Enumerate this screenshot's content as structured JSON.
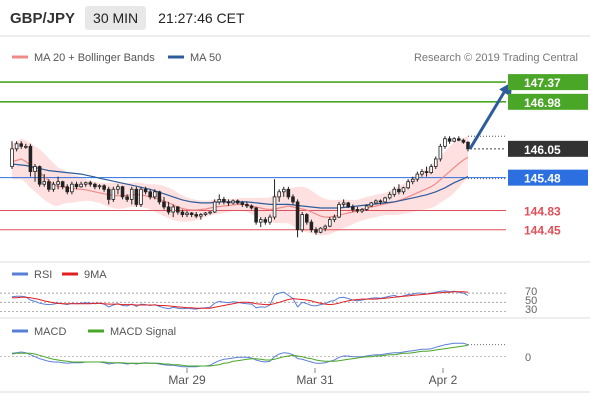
{
  "header": {
    "symbol": "GBP/JPY",
    "timeframe": "30 MIN",
    "time": "21:27:46 CET"
  },
  "legend": {
    "ma20_bb": "MA 20 + Bollinger Bands",
    "ma50": "MA 50",
    "copyright": "Research © 2019 Trading Central",
    "rsi": "RSI",
    "ma9": "9MA",
    "macd": "MACD",
    "macd_signal": "MACD Signal"
  },
  "colors": {
    "ma20": "#f08a8a",
    "ma50": "#2c5c9a",
    "band": "#ffd6d6",
    "green_level": "#4aa626",
    "blue_level": "#2b6fe0",
    "red_level": "#e0505a",
    "candle": "#222222",
    "rsi": "#5a7fd6",
    "ma9": "#e02020",
    "macd": "#5a7fd6",
    "macd_signal": "#4aa626",
    "forecast_arrow": "#2c5c9a"
  },
  "levels": [
    {
      "value": 147.37,
      "label": "147.37",
      "kind": "resistance"
    },
    {
      "value": 146.98,
      "label": "146.98",
      "kind": "resistance"
    },
    {
      "value": 146.05,
      "label": "146.05",
      "kind": "last"
    },
    {
      "value": 145.48,
      "label": "145.48",
      "kind": "pivot"
    },
    {
      "value": 144.83,
      "label": "144.83",
      "kind": "support"
    },
    {
      "value": 144.45,
      "label": "144.45",
      "kind": "support"
    }
  ],
  "xaxis": {
    "labels": [
      "Mar 29",
      "Mar 31",
      "Apr 2"
    ]
  },
  "rsi_axis": {
    "labels": [
      "70",
      "50",
      "30"
    ]
  },
  "macd_axis": {
    "labels": [
      "0"
    ]
  },
  "chart_data": {
    "type": "candlestick",
    "ylim": [
      143.95,
      147.55
    ],
    "candles": [
      [
        145.7,
        146.2,
        145.65,
        146.05
      ],
      [
        146.05,
        146.2,
        146.0,
        146.15
      ],
      [
        146.15,
        146.2,
        146.05,
        146.1
      ],
      [
        146.1,
        146.15,
        146.05,
        146.1
      ],
      [
        146.1,
        146.15,
        145.5,
        145.6
      ],
      [
        145.6,
        145.75,
        145.4,
        145.7
      ],
      [
        145.7,
        145.72,
        145.3,
        145.35
      ],
      [
        145.35,
        145.55,
        145.3,
        145.4
      ],
      [
        145.4,
        145.45,
        145.2,
        145.25
      ],
      [
        145.25,
        145.4,
        145.2,
        145.35
      ],
      [
        145.35,
        145.5,
        145.25,
        145.4
      ],
      [
        145.4,
        145.42,
        145.25,
        145.3
      ],
      [
        145.3,
        145.35,
        145.15,
        145.2
      ],
      [
        145.2,
        145.4,
        145.15,
        145.35
      ],
      [
        145.35,
        145.4,
        145.25,
        145.3
      ],
      [
        145.3,
        145.4,
        145.28,
        145.35
      ],
      [
        145.35,
        145.4,
        145.3,
        145.38
      ],
      [
        145.38,
        145.42,
        145.3,
        145.35
      ],
      [
        145.35,
        145.38,
        145.25,
        145.3
      ],
      [
        145.3,
        145.35,
        145.25,
        145.32
      ],
      [
        145.32,
        145.35,
        145.2,
        145.25
      ],
      [
        145.25,
        145.3,
        144.95,
        145.05
      ],
      [
        145.05,
        145.3,
        145.0,
        145.25
      ],
      [
        145.25,
        145.35,
        145.15,
        145.3
      ],
      [
        145.3,
        145.32,
        145.05,
        145.1
      ],
      [
        145.1,
        145.15,
        145.0,
        145.05
      ],
      [
        145.05,
        145.3,
        144.95,
        145.25
      ],
      [
        145.25,
        145.3,
        144.9,
        144.95
      ],
      [
        144.95,
        145.3,
        144.9,
        145.25
      ],
      [
        145.25,
        145.3,
        145.15,
        145.2
      ],
      [
        145.2,
        145.25,
        145.05,
        145.1
      ],
      [
        145.1,
        145.25,
        145.05,
        145.2
      ],
      [
        145.2,
        145.22,
        144.95,
        145.0
      ],
      [
        145.0,
        145.1,
        144.85,
        144.9
      ],
      [
        144.9,
        145.0,
        144.75,
        144.8
      ],
      [
        144.8,
        144.95,
        144.7,
        144.9
      ],
      [
        144.9,
        144.92,
        144.75,
        144.8
      ],
      [
        144.8,
        144.85,
        144.7,
        144.75
      ],
      [
        144.75,
        144.82,
        144.7,
        144.78
      ],
      [
        144.78,
        144.8,
        144.7,
        144.75
      ],
      [
        144.75,
        144.8,
        144.68,
        144.72
      ],
      [
        144.72,
        144.78,
        144.65,
        144.75
      ],
      [
        144.75,
        144.8,
        144.72,
        144.78
      ],
      [
        144.78,
        144.82,
        144.75,
        144.8
      ],
      [
        144.8,
        145.05,
        144.78,
        145.0
      ],
      [
        145.0,
        145.15,
        144.95,
        145.05
      ],
      [
        145.05,
        145.1,
        144.95,
        145.0
      ],
      [
        145.0,
        145.05,
        144.92,
        144.98
      ],
      [
        144.98,
        145.05,
        144.95,
        145.02
      ],
      [
        145.02,
        145.05,
        144.95,
        144.98
      ],
      [
        144.98,
        145.02,
        144.9,
        144.95
      ],
      [
        144.95,
        145.0,
        144.88,
        144.92
      ],
      [
        144.92,
        144.95,
        144.85,
        144.88
      ],
      [
        144.88,
        144.9,
        144.55,
        144.6
      ],
      [
        144.6,
        144.7,
        144.5,
        144.65
      ],
      [
        144.65,
        144.7,
        144.55,
        144.6
      ],
      [
        144.6,
        144.75,
        144.55,
        144.7
      ],
      [
        144.7,
        145.45,
        144.65,
        145.1
      ],
      [
        145.1,
        145.25,
        145.0,
        145.2
      ],
      [
        145.2,
        145.3,
        145.1,
        145.25
      ],
      [
        145.25,
        145.3,
        145.05,
        145.1
      ],
      [
        145.1,
        145.15,
        144.95,
        145.0
      ],
      [
        145.0,
        145.05,
        144.3,
        144.45
      ],
      [
        144.45,
        144.8,
        144.4,
        144.75
      ],
      [
        144.75,
        144.78,
        144.55,
        144.6
      ],
      [
        144.6,
        144.65,
        144.4,
        144.45
      ],
      [
        144.45,
        144.5,
        144.35,
        144.4
      ],
      [
        144.4,
        144.5,
        144.38,
        144.48
      ],
      [
        144.48,
        144.55,
        144.42,
        144.52
      ],
      [
        144.52,
        144.7,
        144.5,
        144.65
      ],
      [
        144.65,
        144.75,
        144.6,
        144.7
      ],
      [
        144.7,
        145.0,
        144.68,
        144.95
      ],
      [
        144.95,
        145.05,
        144.9,
        144.98
      ],
      [
        144.98,
        145.0,
        144.88,
        144.9
      ],
      [
        144.9,
        144.95,
        144.8,
        144.85
      ],
      [
        144.85,
        144.9,
        144.78,
        144.82
      ],
      [
        144.82,
        144.88,
        144.78,
        144.85
      ],
      [
        144.85,
        144.95,
        144.82,
        144.92
      ],
      [
        144.92,
        145.0,
        144.9,
        144.98
      ],
      [
        144.98,
        145.05,
        144.95,
        145.02
      ],
      [
        145.02,
        145.05,
        144.95,
        145.0
      ],
      [
        145.0,
        145.1,
        144.98,
        145.08
      ],
      [
        145.08,
        145.2,
        145.05,
        145.15
      ],
      [
        145.15,
        145.3,
        145.1,
        145.25
      ],
      [
        145.25,
        145.35,
        145.15,
        145.2
      ],
      [
        145.2,
        145.3,
        145.15,
        145.28
      ],
      [
        145.28,
        145.45,
        145.25,
        145.4
      ],
      [
        145.4,
        145.5,
        145.35,
        145.45
      ],
      [
        145.45,
        145.6,
        145.4,
        145.55
      ],
      [
        145.55,
        145.65,
        145.5,
        145.6
      ],
      [
        145.6,
        145.7,
        145.5,
        145.58
      ],
      [
        145.58,
        145.75,
        145.55,
        145.7
      ],
      [
        145.7,
        145.9,
        145.65,
        145.85
      ],
      [
        145.85,
        146.15,
        145.8,
        146.1
      ],
      [
        146.1,
        146.3,
        146.05,
        146.25
      ],
      [
        146.25,
        146.3,
        146.15,
        146.2
      ],
      [
        146.2,
        146.28,
        146.18,
        146.25
      ],
      [
        146.25,
        146.3,
        146.2,
        146.22
      ],
      [
        146.22,
        146.25,
        146.15,
        146.18
      ],
      [
        146.18,
        146.2,
        146.0,
        146.05
      ]
    ],
    "ma20": [
      145.8,
      145.82,
      145.85,
      145.8,
      145.72,
      145.65,
      145.58,
      145.5,
      145.42,
      145.35,
      145.3,
      145.3,
      145.28,
      145.26,
      145.26,
      145.25,
      145.24,
      145.22,
      145.2,
      145.18,
      145.16,
      145.14,
      145.13,
      145.12,
      145.12,
      145.13,
      145.14,
      145.15,
      145.14,
      145.12,
      145.1,
      145.08,
      145.05,
      145.02,
      144.98,
      144.94,
      144.9,
      144.87,
      144.85,
      144.84,
      144.84,
      144.85,
      144.86,
      144.88,
      144.9,
      144.91,
      144.92,
      144.93,
      144.94,
      144.95,
      144.95,
      144.94,
      144.92,
      144.9,
      144.88,
      144.86,
      144.85,
      144.86,
      144.88,
      144.9,
      144.92,
      144.9,
      144.88,
      144.86,
      144.84,
      144.8,
      144.76,
      144.72,
      144.7,
      144.7,
      144.72,
      144.74,
      144.76,
      144.78,
      144.8,
      144.82,
      144.85,
      144.88,
      144.9,
      144.92,
      144.94,
      144.96,
      144.98,
      145.0,
      145.03,
      145.06,
      145.1,
      145.14,
      145.18,
      145.22,
      145.26,
      145.3,
      145.36,
      145.44,
      145.52,
      145.6,
      145.68,
      145.76,
      145.83,
      145.88
    ],
    "ma50": [
      145.75,
      145.74,
      145.73,
      145.72,
      145.7,
      145.68,
      145.66,
      145.64,
      145.62,
      145.61,
      145.6,
      145.59,
      145.58,
      145.57,
      145.56,
      145.55,
      145.53,
      145.51,
      145.49,
      145.47,
      145.45,
      145.43,
      145.41,
      145.39,
      145.37,
      145.35,
      145.33,
      145.31,
      145.29,
      145.27,
      145.25,
      145.22,
      145.19,
      145.16,
      145.13,
      145.1,
      145.07,
      145.04,
      145.02,
      145.0,
      144.99,
      144.98,
      144.98,
      144.98,
      144.99,
      145.0,
      145.0,
      145.0,
      145.0,
      145.0,
      145.0,
      145.0,
      144.99,
      144.98,
      144.97,
      144.96,
      144.95,
      144.95,
      144.95,
      144.95,
      144.95,
      144.94,
      144.93,
      144.92,
      144.91,
      144.9,
      144.89,
      144.88,
      144.88,
      144.88,
      144.88,
      144.88,
      144.89,
      144.9,
      144.91,
      144.92,
      144.93,
      144.94,
      144.95,
      144.96,
      144.97,
      144.98,
      144.99,
      145.0,
      145.02,
      145.04,
      145.06,
      145.08,
      145.1,
      145.12,
      145.14,
      145.17,
      145.2,
      145.24,
      145.28,
      145.33,
      145.38,
      145.42,
      145.46,
      145.5
    ],
    "bb_width": [
      0.35,
      0.38,
      0.4,
      0.42,
      0.44,
      0.45,
      0.46,
      0.46,
      0.44,
      0.42,
      0.38,
      0.34,
      0.3,
      0.28,
      0.26,
      0.24,
      0.22,
      0.2,
      0.2,
      0.2,
      0.22,
      0.24,
      0.25,
      0.26,
      0.25,
      0.24,
      0.24,
      0.24,
      0.24,
      0.24,
      0.25,
      0.27,
      0.29,
      0.3,
      0.3,
      0.3,
      0.28,
      0.26,
      0.24,
      0.22,
      0.2,
      0.18,
      0.16,
      0.15,
      0.15,
      0.15,
      0.14,
      0.13,
      0.12,
      0.12,
      0.13,
      0.14,
      0.16,
      0.18,
      0.2,
      0.22,
      0.24,
      0.28,
      0.3,
      0.32,
      0.34,
      0.38,
      0.42,
      0.44,
      0.44,
      0.42,
      0.4,
      0.38,
      0.36,
      0.34,
      0.32,
      0.3,
      0.28,
      0.26,
      0.24,
      0.22,
      0.22,
      0.22,
      0.22,
      0.22,
      0.22,
      0.22,
      0.24,
      0.26,
      0.28,
      0.3,
      0.32,
      0.34,
      0.36,
      0.38,
      0.4,
      0.42,
      0.44,
      0.46,
      0.48,
      0.5,
      0.5,
      0.48,
      0.44,
      0.42
    ],
    "rsi": [
      62,
      63,
      63,
      62,
      55,
      52,
      48,
      46,
      45,
      46,
      48,
      47,
      45,
      48,
      47,
      48,
      49,
      48,
      47,
      48,
      46,
      40,
      44,
      47,
      43,
      42,
      46,
      41,
      46,
      45,
      43,
      45,
      41,
      38,
      36,
      39,
      37,
      36,
      37,
      36,
      35,
      37,
      38,
      39,
      48,
      52,
      50,
      49,
      51,
      50,
      48,
      47,
      46,
      38,
      40,
      39,
      44,
      66,
      70,
      72,
      65,
      58,
      40,
      50,
      47,
      43,
      42,
      45,
      47,
      52,
      54,
      60,
      61,
      58,
      55,
      53,
      55,
      57,
      59,
      60,
      59,
      61,
      63,
      65,
      62,
      64,
      67,
      68,
      70,
      70,
      68,
      70,
      72,
      74,
      75,
      73,
      74,
      72,
      70,
      65
    ],
    "rsi_ma9": [
      60,
      60,
      61,
      61,
      60,
      58,
      56,
      53,
      51,
      49,
      48,
      47,
      47,
      47,
      47,
      47,
      47,
      47,
      48,
      48,
      47,
      46,
      46,
      46,
      45,
      45,
      45,
      44,
      44,
      44,
      44,
      44,
      43,
      43,
      42,
      41,
      40,
      39,
      38,
      38,
      37,
      37,
      37,
      37,
      39,
      41,
      43,
      45,
      47,
      49,
      50,
      50,
      49,
      47,
      46,
      45,
      45,
      47,
      50,
      53,
      56,
      58,
      57,
      56,
      55,
      53,
      50,
      48,
      46,
      45,
      46,
      48,
      51,
      53,
      55,
      56,
      57,
      57,
      57,
      57,
      58,
      59,
      60,
      61,
      62,
      63,
      64,
      65,
      66,
      67,
      68,
      69,
      70,
      71,
      72,
      72,
      73,
      73,
      73,
      72
    ],
    "macd": [
      0.05,
      0.06,
      0.07,
      0.06,
      0.03,
      0.0,
      -0.03,
      -0.05,
      -0.07,
      -0.08,
      -0.08,
      -0.09,
      -0.1,
      -0.09,
      -0.09,
      -0.09,
      -0.08,
      -0.08,
      -0.08,
      -0.08,
      -0.09,
      -0.11,
      -0.1,
      -0.09,
      -0.1,
      -0.11,
      -0.1,
      -0.11,
      -0.1,
      -0.09,
      -0.1,
      -0.1,
      -0.11,
      -0.12,
      -0.13,
      -0.13,
      -0.14,
      -0.15,
      -0.15,
      -0.15,
      -0.15,
      -0.14,
      -0.14,
      -0.13,
      -0.09,
      -0.06,
      -0.04,
      -0.03,
      -0.02,
      -0.01,
      -0.01,
      -0.01,
      -0.02,
      -0.05,
      -0.07,
      -0.08,
      -0.07,
      0.0,
      0.04,
      0.06,
      0.05,
      0.03,
      -0.03,
      -0.04,
      -0.06,
      -0.08,
      -0.1,
      -0.1,
      -0.09,
      -0.07,
      -0.05,
      -0.01,
      0.01,
      0.01,
      0.0,
      0.0,
      0.0,
      0.01,
      0.02,
      0.03,
      0.03,
      0.04,
      0.05,
      0.06,
      0.06,
      0.07,
      0.08,
      0.09,
      0.1,
      0.11,
      0.11,
      0.12,
      0.14,
      0.16,
      0.18,
      0.19,
      0.2,
      0.2,
      0.2,
      0.18
    ],
    "macd_signal": [
      0.04,
      0.05,
      0.05,
      0.05,
      0.05,
      0.04,
      0.02,
      0.0,
      -0.02,
      -0.04,
      -0.05,
      -0.06,
      -0.07,
      -0.08,
      -0.08,
      -0.08,
      -0.08,
      -0.08,
      -0.08,
      -0.08,
      -0.08,
      -0.09,
      -0.09,
      -0.09,
      -0.09,
      -0.1,
      -0.1,
      -0.1,
      -0.1,
      -0.1,
      -0.1,
      -0.1,
      -0.1,
      -0.11,
      -0.11,
      -0.12,
      -0.12,
      -0.13,
      -0.14,
      -0.14,
      -0.14,
      -0.14,
      -0.14,
      -0.14,
      -0.13,
      -0.12,
      -0.1,
      -0.09,
      -0.07,
      -0.06,
      -0.05,
      -0.04,
      -0.03,
      -0.03,
      -0.04,
      -0.05,
      -0.05,
      -0.04,
      -0.02,
      0.0,
      0.01,
      0.02,
      0.01,
      0.0,
      -0.02,
      -0.03,
      -0.05,
      -0.06,
      -0.07,
      -0.07,
      -0.07,
      -0.06,
      -0.05,
      -0.04,
      -0.03,
      -0.02,
      -0.01,
      0.0,
      0.0,
      0.01,
      0.01,
      0.02,
      0.03,
      0.03,
      0.04,
      0.05,
      0.05,
      0.06,
      0.07,
      0.08,
      0.08,
      0.09,
      0.1,
      0.11,
      0.12,
      0.13,
      0.14,
      0.15,
      0.16,
      0.17
    ],
    "forecast": {
      "from": 146.05,
      "to": 147.37
    }
  }
}
